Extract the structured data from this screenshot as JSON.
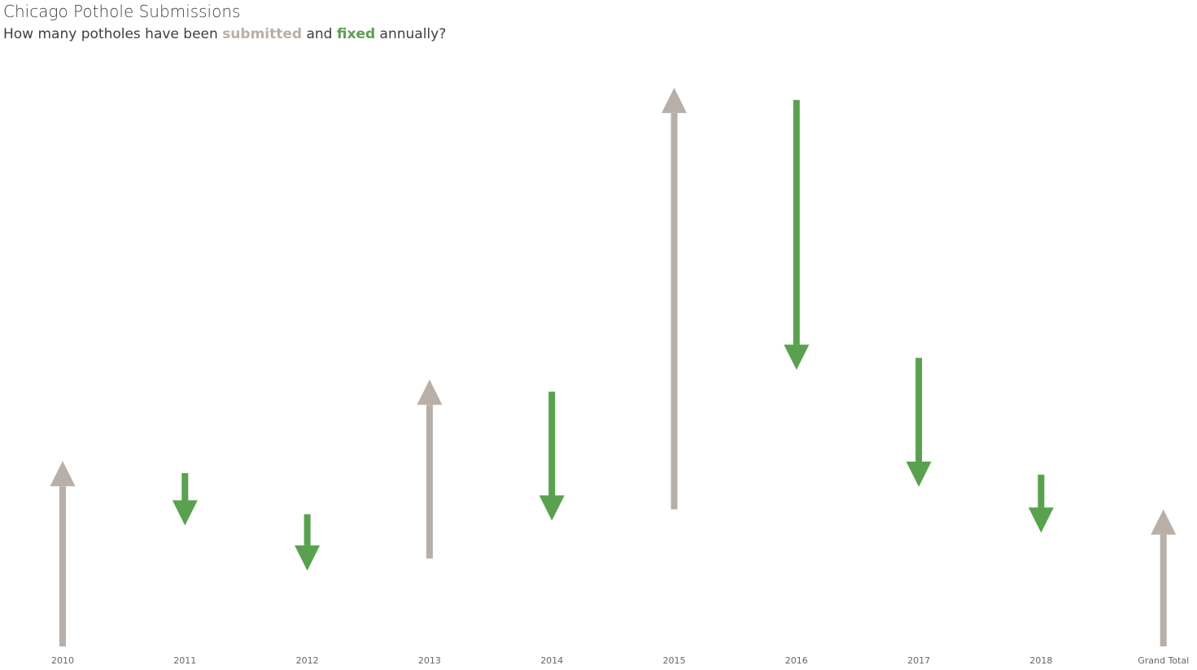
{
  "title": "Chicago Pothole Submissions",
  "subtitle": {
    "part1": "How many potholes have been ",
    "submitted": "submitted",
    "part2": " and ",
    "fixed": "fixed",
    "part3": " annually?"
  },
  "colors": {
    "submitted": "#b8afa8",
    "fixed": "#59a14f",
    "text": "#404040"
  },
  "chart_data": {
    "type": "waterfall-arrows",
    "title": "Chicago Pothole Submissions",
    "categories": [
      "2010",
      "2011",
      "2012",
      "2013",
      "2014",
      "2015",
      "2016",
      "2017",
      "2018",
      "Grand Total"
    ],
    "series": [
      {
        "name": "submitted",
        "points": [
          {
            "category": "2010",
            "from": 0,
            "to": 230
          },
          {
            "category": "2013",
            "from": 109,
            "to": 331
          },
          {
            "category": "2015",
            "from": 170,
            "to": 693
          },
          {
            "category": "Grand Total",
            "from": 0,
            "to": 170
          }
        ]
      },
      {
        "name": "fixed",
        "points": [
          {
            "category": "2011",
            "from": 215,
            "to": 150
          },
          {
            "category": "2012",
            "from": 164,
            "to": 94
          },
          {
            "category": "2014",
            "from": 316,
            "to": 156
          },
          {
            "category": "2016",
            "from": 678,
            "to": 343
          },
          {
            "category": "2017",
            "from": 358,
            "to": 198
          },
          {
            "category": "2018",
            "from": 213,
            "to": 141
          }
        ]
      }
    ],
    "ylim": [
      0,
      700
    ],
    "grid": false,
    "legend": "none"
  }
}
